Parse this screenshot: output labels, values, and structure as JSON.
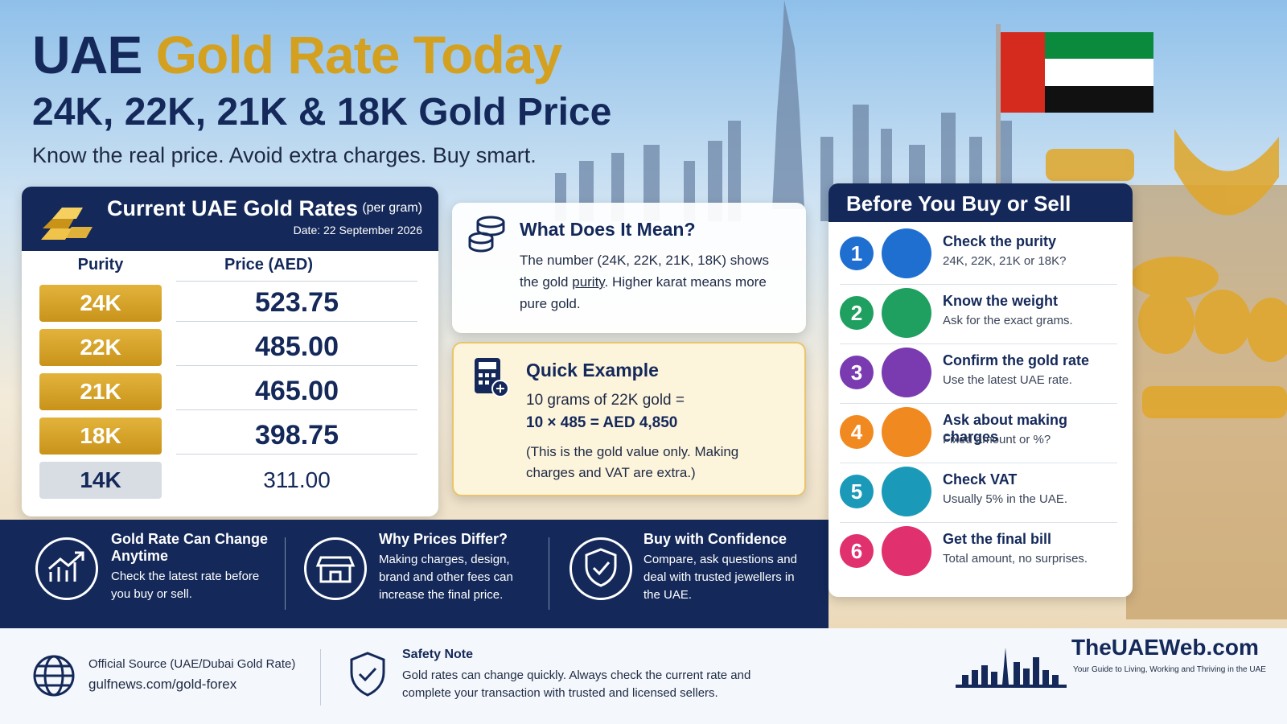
{
  "header": {
    "title_lead": "UAE",
    "title_gold": "Gold Rate Today",
    "subtitle": "24K, 22K, 21K & 18K Gold Price",
    "tagline": "Know the real price. Avoid extra charges. Buy smart."
  },
  "rates": {
    "title": "Current UAE Gold Rates",
    "unit": "(per gram)",
    "date": "Date: 22 September 2026",
    "columns": [
      "Purity",
      "Price (AED)"
    ],
    "rows": [
      [
        "24K",
        "523.75"
      ],
      [
        "22K",
        "485.00"
      ],
      [
        "21K",
        "465.00"
      ],
      [
        "18K",
        "398.75"
      ],
      [
        "14K",
        "311.00"
      ]
    ]
  },
  "meaning": {
    "title": "What Does It Mean?",
    "text_before": "The number (24K, 22K, 21K, 18K) shows the gold",
    "text_underlined": "purity",
    "text_after": ". Higher karat means more pure gold."
  },
  "example": {
    "title": "Quick Example",
    "line1": "10 grams of 22K gold =",
    "line2": "10 × 485 = AED 4,850",
    "note": "(This is the gold value only. Making charges and VAT are extra.)"
  },
  "checklist": {
    "title": "Before You Buy or Sell",
    "items": [
      {
        "number": "1",
        "title": "Check the purity",
        "text": "24K, 22K, 21K or 18K?"
      },
      {
        "number": "2",
        "title": "Know the weight",
        "text": "Ask for the exact grams."
      },
      {
        "number": "3",
        "title": "Confirm the gold rate",
        "text": "Use the latest UAE rate."
      },
      {
        "number": "4",
        "title": "Ask about making charges",
        "text": "Fixed amount or %?"
      },
      {
        "number": "5",
        "title": "Check VAT",
        "text": "Usually 5% in the UAE."
      },
      {
        "number": "6",
        "title": "Get the final bill",
        "text": "Total amount, no surprises."
      }
    ]
  },
  "info_strip": [
    {
      "title": "Gold Rate Can Change Anytime",
      "text": "Check the latest rate before you buy or sell."
    },
    {
      "title": "Why Prices Differ?",
      "text": "Making charges, design, brand and other fees can increase the final price."
    },
    {
      "title": "Buy with Confidence",
      "text": "Compare, ask questions and deal with trusted jewellers in the UAE."
    }
  ],
  "footer": {
    "source_label": "Official Source (UAE/Dubai Gold Rate)",
    "source_url": "gulfnews.com/gold-forex",
    "safety_title": "Safety Note",
    "safety_text": "Gold rates can change quickly. Always check the current rate and complete your transaction with trusted and licensed sellers.",
    "brand": "TheUAEWeb.com",
    "brand_tagline": "Your Guide to Living, Working and Thriving in the UAE"
  }
}
